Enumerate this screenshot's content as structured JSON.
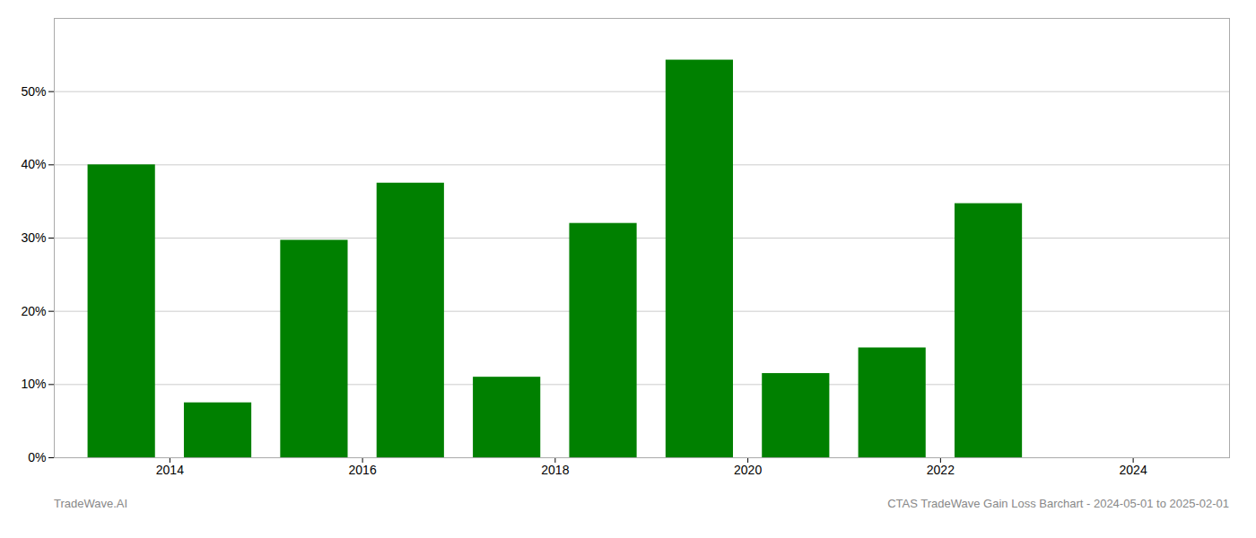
{
  "chart_data": {
    "type": "bar",
    "x": [
      2013.5,
      2014.5,
      2015.5,
      2016.5,
      2017.5,
      2018.5,
      2019.5,
      2020.5,
      2021.5,
      2022.5
    ],
    "values": [
      0.4,
      0.075,
      0.297,
      0.375,
      0.11,
      0.32,
      0.543,
      0.115,
      0.15,
      0.347
    ],
    "color": "#008000",
    "xlim": [
      2012.8,
      2025.0
    ],
    "xticks": [
      2014,
      2016,
      2018,
      2020,
      2022,
      2024
    ],
    "ylim": [
      0,
      0.6
    ],
    "yticks": [
      {
        "value": 0.0,
        "label": "0%"
      },
      {
        "value": 0.1,
        "label": "10%"
      },
      {
        "value": 0.2,
        "label": "20%"
      },
      {
        "value": 0.3,
        "label": "30%"
      },
      {
        "value": 0.4,
        "label": "40%"
      },
      {
        "value": 0.5,
        "label": "50%"
      }
    ],
    "grid": true,
    "annotations": [
      "TradeWave.AI",
      "CTAS TradeWave Gain Loss Barchart - 2024-05-01 to 2025-02-01"
    ]
  }
}
